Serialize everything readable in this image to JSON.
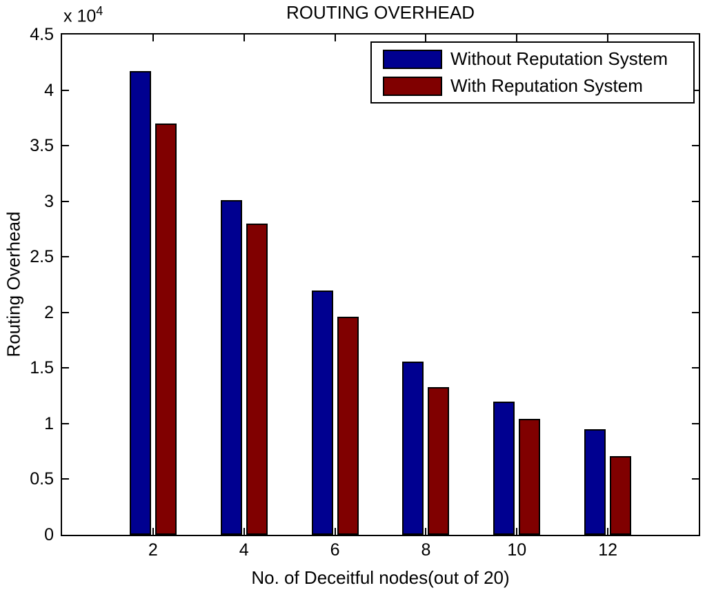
{
  "chart_data": {
    "type": "bar",
    "title": "ROUTING OVERHEAD",
    "xlabel": "No. of Deceitful nodes(out of 20)",
    "ylabel": "Routing Overhead",
    "y_multiplier": {
      "base": "x 10",
      "exponent": "4"
    },
    "values_unit": "x 10^4",
    "categories": [
      2,
      4,
      6,
      8,
      10,
      12
    ],
    "series": [
      {
        "name": "Without Reputation System",
        "color": "#000090",
        "values": [
          4.17,
          3.01,
          2.2,
          1.56,
          1.2,
          0.95
        ]
      },
      {
        "name": "With Reputation System",
        "color": "#800000",
        "values": [
          3.7,
          2.8,
          1.96,
          1.33,
          1.04,
          0.71
        ]
      }
    ],
    "xlim": [
      0,
      14
    ],
    "ylim": [
      0,
      4.5
    ],
    "ytick_step": 0.5,
    "xticks": [
      2,
      4,
      6,
      8,
      10,
      12
    ],
    "grid": false,
    "legend_position": "top-right",
    "bar_width": 0.47,
    "bar_offsets": [
      -0.28,
      0.28
    ],
    "background_color": "#ffffff",
    "axis_color": "#000000"
  }
}
